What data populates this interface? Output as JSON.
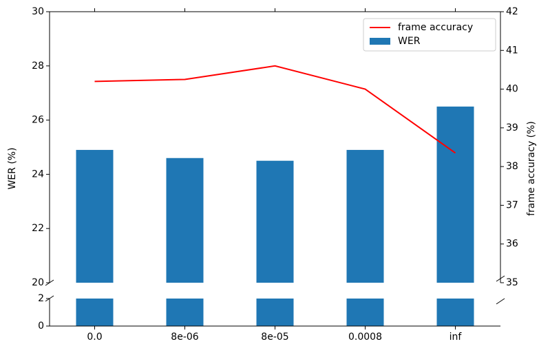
{
  "chart_data": {
    "type": "bar",
    "categories": [
      "0.0",
      "8e-06",
      "8e-05",
      "0.0008",
      "inf"
    ],
    "series": [
      {
        "name": "frame accuracy",
        "type": "line",
        "axis": "y2",
        "color": "#ff0000",
        "values": [
          40.2,
          40.25,
          40.6,
          40.0,
          38.35
        ]
      },
      {
        "name": "WER",
        "type": "bar",
        "color": "#1f77b4",
        "values": [
          24.9,
          24.6,
          24.5,
          24.9,
          26.5
        ]
      }
    ],
    "ylabel": "WER (%)",
    "y2label": "frame accuracy (%)",
    "ylim": [
      20,
      30
    ],
    "yticks": [
      20,
      22,
      24,
      26,
      28,
      30
    ],
    "lower_ylim": [
      0,
      2
    ],
    "lower_yticks": [
      0,
      2
    ],
    "y2lim": [
      35,
      42
    ],
    "y2ticks": [
      35,
      36,
      37,
      38,
      39,
      40,
      41,
      42
    ],
    "legend": "upper right",
    "grid": false
  }
}
